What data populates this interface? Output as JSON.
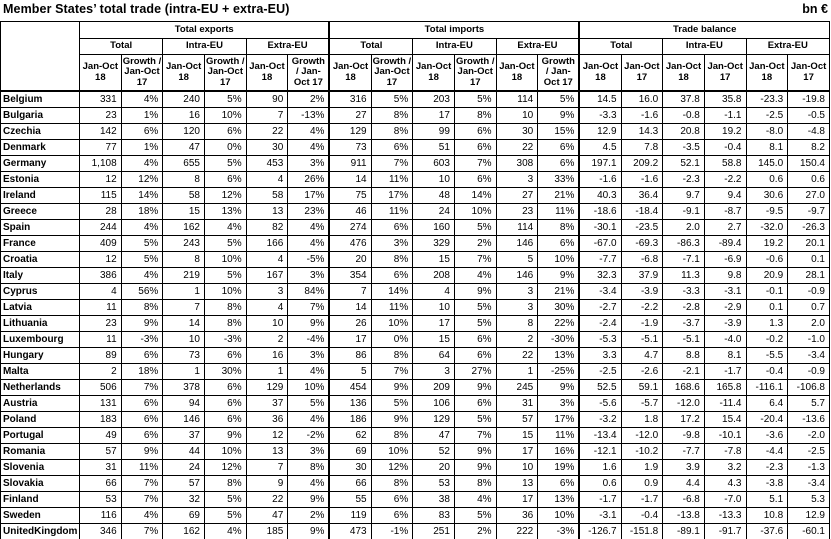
{
  "title": "Member States’ total trade (intra-EU + extra-EU)",
  "unit": "bn €",
  "colors": {
    "text": "#000000",
    "border": "#000000",
    "background": "#ffffff"
  },
  "chart_data": {
    "type": "table",
    "groups": [
      {
        "label": "Total exports",
        "subgroups": [
          "Total",
          "Intra-EU",
          "Extra-EU"
        ],
        "col_pair": [
          "Jan-Oct 18",
          "Growth / Jan-Oct 17"
        ]
      },
      {
        "label": "Total imports",
        "subgroups": [
          "Total",
          "Intra-EU",
          "Extra-EU"
        ],
        "col_pair": [
          "Jan-Oct 18",
          "Growth / Jan-Oct 17"
        ]
      },
      {
        "label": "Trade balance",
        "subgroups": [
          "Total",
          "Intra-EU",
          "Extra-EU"
        ],
        "col_pair": [
          "Jan-Oct 18",
          "Jan-Oct 17"
        ]
      }
    ],
    "rows": [
      {
        "country": "Belgium",
        "values": [
          "331",
          "4%",
          "240",
          "5%",
          "90",
          "2%",
          "316",
          "5%",
          "203",
          "5%",
          "114",
          "5%",
          "14.5",
          "16.0",
          "37.8",
          "35.8",
          "-23.3",
          "-19.8"
        ]
      },
      {
        "country": "Bulgaria",
        "values": [
          "23",
          "1%",
          "16",
          "10%",
          "7",
          "-13%",
          "27",
          "8%",
          "17",
          "8%",
          "10",
          "9%",
          "-3.3",
          "-1.6",
          "-0.8",
          "-1.1",
          "-2.5",
          "-0.5"
        ]
      },
      {
        "country": "Czechia",
        "values": [
          "142",
          "6%",
          "120",
          "6%",
          "22",
          "4%",
          "129",
          "8%",
          "99",
          "6%",
          "30",
          "15%",
          "12.9",
          "14.3",
          "20.8",
          "19.2",
          "-8.0",
          "-4.8"
        ]
      },
      {
        "country": "Denmark",
        "values": [
          "77",
          "1%",
          "47",
          "0%",
          "30",
          "4%",
          "73",
          "6%",
          "51",
          "6%",
          "22",
          "6%",
          "4.5",
          "7.8",
          "-3.5",
          "-0.4",
          "8.1",
          "8.2"
        ]
      },
      {
        "country": "Germany",
        "values": [
          "1,108",
          "4%",
          "655",
          "5%",
          "453",
          "3%",
          "911",
          "7%",
          "603",
          "7%",
          "308",
          "6%",
          "197.1",
          "209.2",
          "52.1",
          "58.8",
          "145.0",
          "150.4"
        ]
      },
      {
        "country": "Estonia",
        "values": [
          "12",
          "12%",
          "8",
          "6%",
          "4",
          "26%",
          "14",
          "11%",
          "10",
          "6%",
          "3",
          "33%",
          "-1.6",
          "-1.6",
          "-2.3",
          "-2.2",
          "0.6",
          "0.6"
        ]
      },
      {
        "country": "Ireland",
        "values": [
          "115",
          "14%",
          "58",
          "12%",
          "58",
          "17%",
          "75",
          "17%",
          "48",
          "14%",
          "27",
          "21%",
          "40.3",
          "36.4",
          "9.7",
          "9.4",
          "30.6",
          "27.0"
        ]
      },
      {
        "country": "Greece",
        "values": [
          "28",
          "18%",
          "15",
          "13%",
          "13",
          "23%",
          "46",
          "11%",
          "24",
          "10%",
          "23",
          "11%",
          "-18.6",
          "-18.4",
          "-9.1",
          "-8.7",
          "-9.5",
          "-9.7"
        ]
      },
      {
        "country": "Spain",
        "values": [
          "244",
          "4%",
          "162",
          "4%",
          "82",
          "4%",
          "274",
          "6%",
          "160",
          "5%",
          "114",
          "8%",
          "-30.1",
          "-23.5",
          "2.0",
          "2.7",
          "-32.0",
          "-26.3"
        ]
      },
      {
        "country": "France",
        "values": [
          "409",
          "5%",
          "243",
          "5%",
          "166",
          "4%",
          "476",
          "3%",
          "329",
          "2%",
          "146",
          "6%",
          "-67.0",
          "-69.3",
          "-86.3",
          "-89.4",
          "19.2",
          "20.1"
        ]
      },
      {
        "country": "Croatia",
        "values": [
          "12",
          "5%",
          "8",
          "10%",
          "4",
          "-5%",
          "20",
          "8%",
          "15",
          "7%",
          "5",
          "10%",
          "-7.7",
          "-6.8",
          "-7.1",
          "-6.9",
          "-0.6",
          "0.1"
        ]
      },
      {
        "country": "Italy",
        "values": [
          "386",
          "4%",
          "219",
          "5%",
          "167",
          "3%",
          "354",
          "6%",
          "208",
          "4%",
          "146",
          "9%",
          "32.3",
          "37.9",
          "11.3",
          "9.8",
          "20.9",
          "28.1"
        ]
      },
      {
        "country": "Cyprus",
        "values": [
          "4",
          "56%",
          "1",
          "10%",
          "3",
          "84%",
          "7",
          "14%",
          "4",
          "9%",
          "3",
          "21%",
          "-3.4",
          "-3.9",
          "-3.3",
          "-3.1",
          "-0.1",
          "-0.9"
        ]
      },
      {
        "country": "Latvia",
        "values": [
          "11",
          "8%",
          "7",
          "8%",
          "4",
          "7%",
          "14",
          "11%",
          "10",
          "5%",
          "3",
          "30%",
          "-2.7",
          "-2.2",
          "-2.8",
          "-2.9",
          "0.1",
          "0.7"
        ]
      },
      {
        "country": "Lithuania",
        "values": [
          "23",
          "9%",
          "14",
          "8%",
          "10",
          "9%",
          "26",
          "10%",
          "17",
          "5%",
          "8",
          "22%",
          "-2.4",
          "-1.9",
          "-3.7",
          "-3.9",
          "1.3",
          "2.0"
        ]
      },
      {
        "country": "Luxembourg",
        "values": [
          "11",
          "-3%",
          "10",
          "-3%",
          "2",
          "-4%",
          "17",
          "0%",
          "15",
          "6%",
          "2",
          "-30%",
          "-5.3",
          "-5.1",
          "-5.1",
          "-4.0",
          "-0.2",
          "-1.0"
        ]
      },
      {
        "country": "Hungary",
        "values": [
          "89",
          "6%",
          "73",
          "6%",
          "16",
          "3%",
          "86",
          "8%",
          "64",
          "6%",
          "22",
          "13%",
          "3.3",
          "4.7",
          "8.8",
          "8.1",
          "-5.5",
          "-3.4"
        ]
      },
      {
        "country": "Malta",
        "values": [
          "2",
          "18%",
          "1",
          "30%",
          "1",
          "4%",
          "5",
          "7%",
          "3",
          "27%",
          "1",
          "-25%",
          "-2.5",
          "-2.6",
          "-2.1",
          "-1.7",
          "-0.4",
          "-0.9"
        ]
      },
      {
        "country": "Netherlands",
        "values": [
          "506",
          "7%",
          "378",
          "6%",
          "129",
          "10%",
          "454",
          "9%",
          "209",
          "9%",
          "245",
          "9%",
          "52.5",
          "59.1",
          "168.6",
          "165.8",
          "-116.1",
          "-106.8"
        ]
      },
      {
        "country": "Austria",
        "values": [
          "131",
          "6%",
          "94",
          "6%",
          "37",
          "5%",
          "136",
          "5%",
          "106",
          "6%",
          "31",
          "3%",
          "-5.6",
          "-5.7",
          "-12.0",
          "-11.4",
          "6.4",
          "5.7"
        ]
      },
      {
        "country": "Poland",
        "values": [
          "183",
          "6%",
          "146",
          "6%",
          "36",
          "4%",
          "186",
          "9%",
          "129",
          "5%",
          "57",
          "17%",
          "-3.2",
          "1.8",
          "17.2",
          "15.4",
          "-20.4",
          "-13.6"
        ]
      },
      {
        "country": "Portugal",
        "values": [
          "49",
          "6%",
          "37",
          "9%",
          "12",
          "-2%",
          "62",
          "8%",
          "47",
          "7%",
          "15",
          "11%",
          "-13.4",
          "-12.0",
          "-9.8",
          "-10.1",
          "-3.6",
          "-2.0"
        ]
      },
      {
        "country": "Romania",
        "values": [
          "57",
          "9%",
          "44",
          "10%",
          "13",
          "3%",
          "69",
          "10%",
          "52",
          "9%",
          "17",
          "16%",
          "-12.1",
          "-10.2",
          "-7.7",
          "-7.8",
          "-4.4",
          "-2.5"
        ]
      },
      {
        "country": "Slovenia",
        "values": [
          "31",
          "11%",
          "24",
          "12%",
          "7",
          "8%",
          "30",
          "12%",
          "20",
          "9%",
          "10",
          "19%",
          "1.6",
          "1.9",
          "3.9",
          "3.2",
          "-2.3",
          "-1.3"
        ]
      },
      {
        "country": "Slovakia",
        "values": [
          "66",
          "7%",
          "57",
          "8%",
          "9",
          "4%",
          "66",
          "8%",
          "53",
          "8%",
          "13",
          "6%",
          "0.6",
          "0.9",
          "4.4",
          "4.3",
          "-3.8",
          "-3.4"
        ]
      },
      {
        "country": "Finland",
        "values": [
          "53",
          "7%",
          "32",
          "5%",
          "22",
          "9%",
          "55",
          "6%",
          "38",
          "4%",
          "17",
          "13%",
          "-1.7",
          "-1.7",
          "-6.8",
          "-7.0",
          "5.1",
          "5.3"
        ]
      },
      {
        "country": "Sweden",
        "values": [
          "116",
          "4%",
          "69",
          "5%",
          "47",
          "2%",
          "119",
          "6%",
          "83",
          "5%",
          "36",
          "10%",
          "-3.1",
          "-0.4",
          "-13.8",
          "-13.3",
          "10.8",
          "12.9"
        ]
      },
      {
        "country": "UnitedKingdom",
        "values": [
          "346",
          "7%",
          "162",
          "4%",
          "185",
          "9%",
          "473",
          "-1%",
          "251",
          "2%",
          "222",
          "-3%",
          "-126.7",
          "-151.8",
          "-89.1",
          "-91.7",
          "-37.6",
          "-60.1"
        ]
      }
    ]
  }
}
